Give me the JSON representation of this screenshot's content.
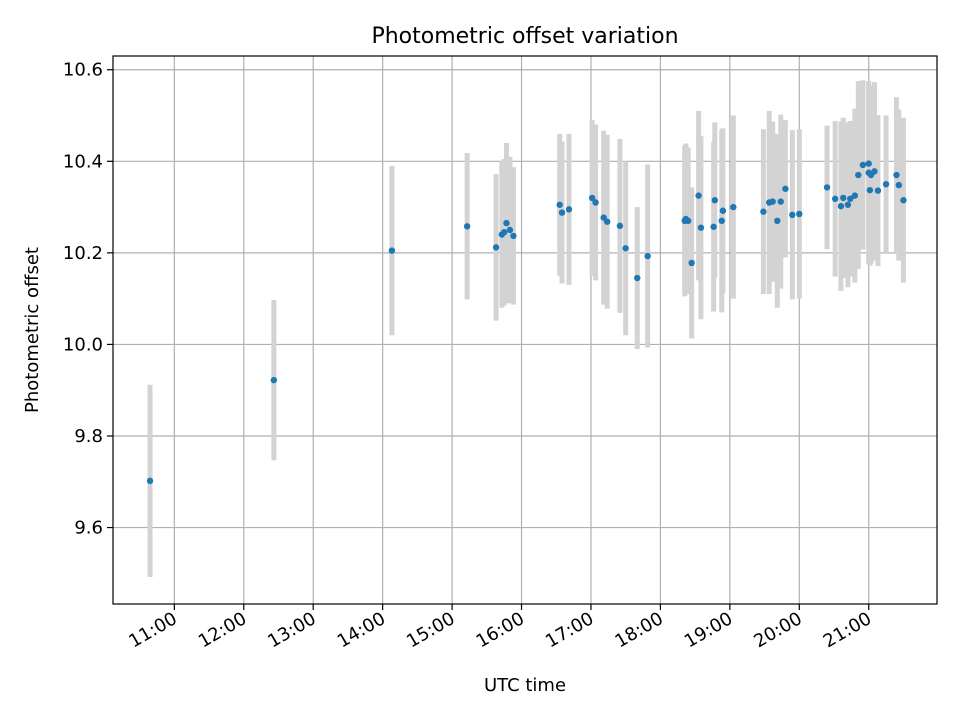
{
  "chart_data": {
    "type": "scatter",
    "title": "Photometric offset variation",
    "xlabel": "UTC time",
    "ylabel": "Photometric offset",
    "x_tick_labels": [
      "11:00",
      "12:00",
      "13:00",
      "14:00",
      "15:00",
      "16:00",
      "17:00",
      "18:00",
      "19:00",
      "20:00",
      "21:00"
    ],
    "y_tick_labels": [
      "9.6",
      "9.8",
      "10.0",
      "10.2",
      "10.4",
      "10.6"
    ],
    "xlim": [
      "10:07",
      "21:59"
    ],
    "ylim": [
      9.433,
      10.63
    ],
    "grid": true,
    "colors": {
      "point": "#1f77b4",
      "errorbar": "#d3d3d3"
    },
    "series": [
      {
        "x": [
          "10:39",
          "12:26",
          "14:08",
          "15:13",
          "15:38",
          "15:43",
          "15:45",
          "15:47",
          "15:50",
          "15:53",
          "16:33",
          "16:35",
          "16:41",
          "17:01",
          "17:04",
          "17:11",
          "17:14",
          "17:25",
          "17:30",
          "17:40",
          "17:49",
          "18:21",
          "18:22",
          "18:24",
          "18:27",
          "18:33",
          "18:35",
          "18:46",
          "18:47",
          "18:53",
          "18:54",
          "19:03",
          "19:29",
          "19:34",
          "19:37",
          "19:41",
          "19:44",
          "19:48",
          "19:54",
          "20:00",
          "20:24",
          "20:31",
          "20:36",
          "20:38",
          "20:42",
          "20:44",
          "20:48",
          "20:51",
          "20:55",
          "21:00",
          "21:00",
          "21:01",
          "21:02",
          "21:05",
          "21:08",
          "21:15",
          "21:24",
          "21:26",
          "21:30"
        ],
        "y": [
          9.702,
          9.922,
          10.205,
          10.258,
          10.212,
          10.24,
          10.245,
          10.265,
          10.25,
          10.237,
          10.305,
          10.288,
          10.295,
          10.32,
          10.31,
          10.277,
          10.268,
          10.259,
          10.21,
          10.145,
          10.193,
          10.27,
          10.274,
          10.27,
          10.178,
          10.325,
          10.255,
          10.257,
          10.315,
          10.27,
          10.292,
          10.3,
          10.29,
          10.31,
          10.312,
          10.27,
          10.312,
          10.34,
          10.283,
          10.285,
          10.343,
          10.318,
          10.302,
          10.32,
          10.305,
          10.318,
          10.325,
          10.37,
          10.392,
          10.375,
          10.395,
          10.337,
          10.37,
          10.378,
          10.336,
          10.35,
          10.37,
          10.348,
          10.315
        ],
        "yerr": [
          0.21,
          0.175,
          0.185,
          0.16,
          0.16,
          0.16,
          0.16,
          0.175,
          0.16,
          0.15,
          0.155,
          0.155,
          0.165,
          0.17,
          0.17,
          0.19,
          0.19,
          0.19,
          0.19,
          0.155,
          0.2,
          0.165,
          0.165,
          0.16,
          0.165,
          0.185,
          0.2,
          0.185,
          0.17,
          0.2,
          0.18,
          0.2,
          0.18,
          0.2,
          0.175,
          0.19,
          0.19,
          0.15,
          0.185,
          0.185,
          0.135,
          0.17,
          0.185,
          0.175,
          0.18,
          0.17,
          0.19,
          0.205,
          0.185,
          0.2,
          0.18,
          0.165,
          0.195,
          0.195,
          0.165,
          0.15,
          0.17,
          0.165,
          0.18
        ]
      }
    ]
  }
}
